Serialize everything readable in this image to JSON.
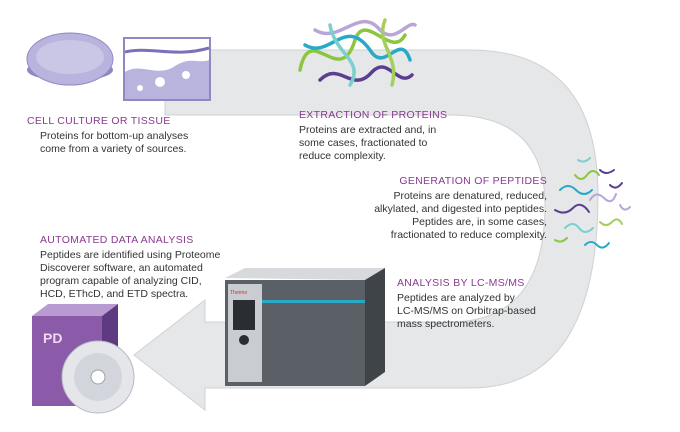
{
  "colors": {
    "arrow_fill": "#e6e7e8",
    "arrow_stroke": "#d0d1d3",
    "heading": "#8a3a90",
    "body_text": "#333333",
    "culture_lavender": "#b9b4de",
    "box_purple": "#8b5aa8",
    "instrument_gray": "#5b6066"
  },
  "steps": [
    {
      "title": "CELL CULTURE OR TISSUE",
      "lines": [
        "Proteins for bottom-up analyses",
        "come from a variety of sources."
      ]
    },
    {
      "title": "EXTRACTION OF PROTEINS",
      "lines": [
        "Proteins are extracted and, in",
        "some cases, fractionated to",
        "reduce complexity."
      ]
    },
    {
      "title": "GENERATION OF PEPTIDES",
      "lines": [
        "Proteins are denatured, reduced,",
        "alkylated, and digested into peptides.",
        "Peptides are, in some cases,",
        "fractionated to reduce complexity."
      ]
    },
    {
      "title": "ANALYSIS BY LC-MS/MS",
      "lines": [
        "Peptides are analyzed by",
        "LC-MS/MS on Orbitrap-based",
        "mass spectrometers."
      ]
    },
    {
      "title": "AUTOMATED DATA ANALYSIS",
      "lines": [
        "Peptides are identified using Proteome",
        "Discoverer software, an automated",
        "program capable of analyzing CID,",
        "HCD, EThcD, and ETD spectra."
      ]
    }
  ],
  "software_box": {
    "logo": "PD"
  },
  "instrument": {
    "brand": "Thermo"
  },
  "icons": [
    "petri-dish-icon",
    "tissue-section-icon",
    "protein-structures-icon",
    "peptide-fragments-icon",
    "mass-spectrometer-icon",
    "software-box-icon"
  ]
}
